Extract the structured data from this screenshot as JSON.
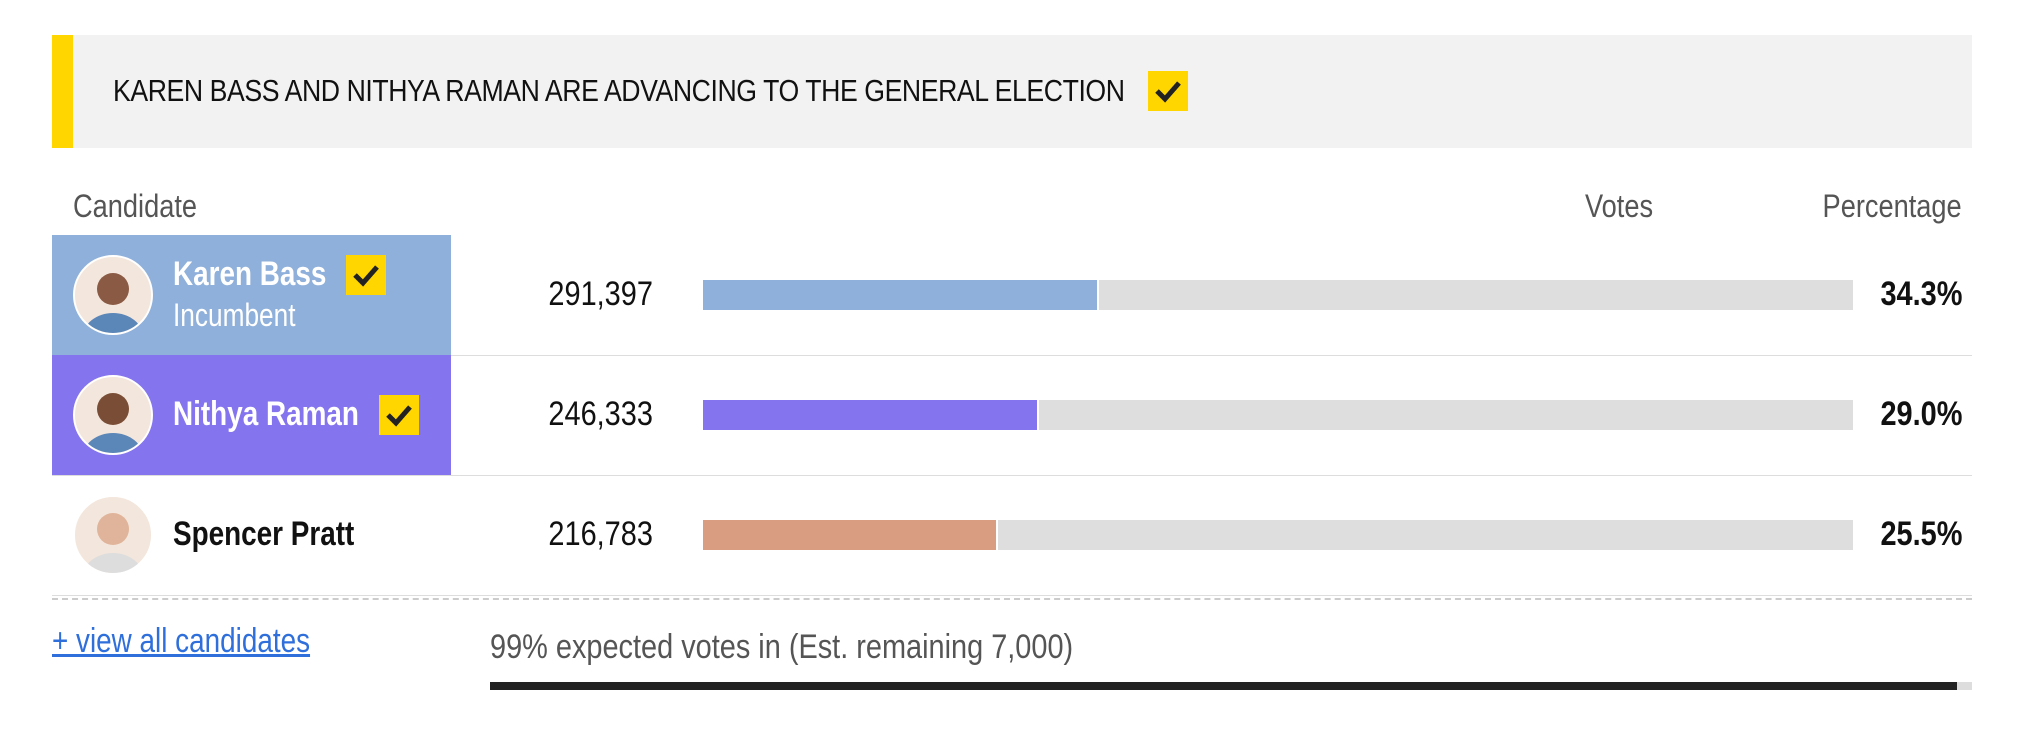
{
  "banner": {
    "title": "KAREN BASS AND NITHYA RAMAN ARE ADVANCING TO THE GENERAL ELECTION"
  },
  "table": {
    "headers": {
      "candidate": "Candidate",
      "votes": "Votes",
      "percentage": "Percentage"
    },
    "rows": [
      {
        "name": "Karen Bass",
        "subtitle": "Incumbent",
        "votes": "291,397",
        "percentage": 34.3,
        "percentage_label": "34.3%",
        "color": "#8fb0da",
        "advancing": true,
        "photo_color": "#8a5a44"
      },
      {
        "name": "Nithya Raman",
        "votes": "246,333",
        "percentage": 29.0,
        "percentage_label": "29.0%",
        "color": "#8474ee",
        "advancing": true,
        "photo_color": "#7a4e36"
      },
      {
        "name": "Spencer Pratt",
        "votes": "216,783",
        "percentage": 25.5,
        "percentage_label": "25.5%",
        "color": "#d99e82",
        "advancing": false,
        "photo_color": "#e0b49a"
      }
    ]
  },
  "footer": {
    "link": "+ view all candidates",
    "expected": "99% expected votes in (Est. remaining 7,000)",
    "expected_value": 99
  }
}
